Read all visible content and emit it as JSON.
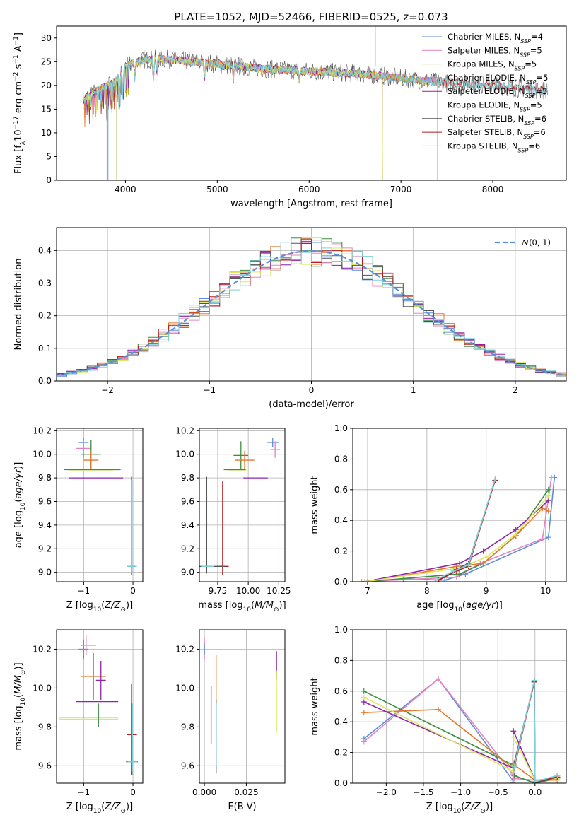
{
  "figure_title": "PLATE=1052, MJD=52466, FIBERID=0525, z=0.073",
  "colors": {
    "Chabrier MILES": "#5b8fd6",
    "Salpeter MILES": "#e583c4",
    "Kroupa MILES": "#b5a52a",
    "Chabrier ELODIE": "#e6782a",
    "Salpeter ELODIE": "#8e24aa",
    "Kroupa ELODIE": "#d9ea62",
    "Chabrier STELIB": "#555555",
    "Salpeter STELIB": "#b71c1c",
    "Kroupa STELIB": "#7ecfd8",
    "green": "#3e8e41",
    "normal_curve": "#5b8fd6"
  },
  "chart_data": [
    {
      "type": "line",
      "id": "spectrum",
      "xlabel": "wavelength [Angstrom, rest frame]",
      "ylabel": "Flux [f",
      "ylabel_parts": [
        "Flux [f",
        "λ",
        "10",
        "−17",
        " erg cm",
        "−2",
        " s",
        "−1",
        " A",
        "−1",
        "]"
      ],
      "xlim": [
        3250,
        8800
      ],
      "ylim": [
        0,
        32.5
      ],
      "xticks": [
        4000,
        5000,
        6000,
        7000,
        8000
      ],
      "yticks": [
        0,
        5,
        10,
        15,
        20,
        25,
        30
      ],
      "grid": false,
      "legend": "top-right",
      "legend_entries": [
        {
          "base": "Chabrier MILES, N",
          "sub": "SSP",
          "tail": "=4",
          "color": "#5b8fd6"
        },
        {
          "base": "Salpeter MILES, N",
          "sub": "SSP",
          "tail": "=5",
          "color": "#e583c4"
        },
        {
          "base": "Kroupa MILES, N",
          "sub": "SSP",
          "tail": "=5",
          "color": "#b5a52a"
        },
        {
          "base": "Chabrier ELODIE, N",
          "sub": "SSP",
          "tail": "=5",
          "color": "#e6782a"
        },
        {
          "base": "Salpeter ELODIE, N",
          "sub": "SSP",
          "tail": "=5",
          "color": "#8e24aa"
        },
        {
          "base": "Kroupa ELODIE, N",
          "sub": "SSP",
          "tail": "=5",
          "color": "#d9ea62"
        },
        {
          "base": "Chabrier STELIB, N",
          "sub": "SSP",
          "tail": "=6",
          "color": "#555555"
        },
        {
          "base": "Salpeter STELIB, N",
          "sub": "SSP",
          "tail": "=6",
          "color": "#b71c1c"
        },
        {
          "base": "Kroupa STELIB, N",
          "sub": "SSP",
          "tail": "=6",
          "color": "#7ecfd8"
        }
      ],
      "continuum": {
        "x": [
          3550,
          3700,
          3900,
          4000,
          4200,
          4500,
          5000,
          5500,
          6000,
          6500,
          6800,
          7000,
          7500,
          8000,
          8500
        ],
        "y": [
          17,
          19,
          21,
          24,
          25.5,
          25.5,
          24.5,
          23.5,
          23,
          22.5,
          22,
          21.5,
          20.5,
          20,
          19
        ]
      }
    },
    {
      "type": "histogram",
      "id": "residuals",
      "xlabel": "(data-model)/error",
      "ylabel": "Normed distribution",
      "xlim": [
        -2.5,
        2.5
      ],
      "ylim": [
        0,
        0.47
      ],
      "xticks": [
        -2,
        -1,
        0,
        1,
        2
      ],
      "yticks": [
        0.0,
        0.1,
        0.2,
        0.3,
        0.4
      ],
      "grid": true,
      "legend": "top-right",
      "legend_label": "N(0, 1)",
      "bin_width": 0.1,
      "series_hint": "9 step histograms approximating a standard normal"
    },
    {
      "type": "errorbar",
      "id": "age-vs-Z",
      "xlabel": "Z [log10(Z/Z⊙)]",
      "ylabel": "age [log10(age/yr)]",
      "xlim": [
        -1.55,
        0.2
      ],
      "ylim": [
        8.92,
        10.22
      ],
      "xticks": [
        -1,
        0
      ],
      "yticks": [
        9.0,
        9.2,
        9.4,
        9.6,
        9.8,
        10.0,
        10.2
      ],
      "grid": true,
      "points": [
        {
          "x": -1.0,
          "xerr": [
            0.1,
            0.1
          ],
          "y": 10.1,
          "yerr": [
            0.04,
            0.04
          ],
          "color": "#5b8fd6"
        },
        {
          "x": -1.0,
          "xerr": [
            0.15,
            0.15
          ],
          "y": 10.05,
          "yerr": [
            0.08,
            0.08
          ],
          "color": "#e583c4"
        },
        {
          "x": -0.85,
          "xerr": [
            0.2,
            0.2
          ],
          "y": 10.0,
          "yerr": [
            0.12,
            0.12
          ],
          "color": "#3e8e41"
        },
        {
          "x": -0.85,
          "xerr": [
            0.15,
            0.15
          ],
          "y": 9.95,
          "yerr": [
            0.08,
            0.08
          ],
          "color": "#e6782a"
        },
        {
          "x": -0.65,
          "xerr": [
            0.75,
            0.4
          ],
          "y": 9.87,
          "yerr": [
            0.0,
            0.0
          ],
          "color": "#3e8e41"
        },
        {
          "x": -0.75,
          "xerr": [
            0.55,
            0.35
          ],
          "y": 9.86,
          "yerr": [
            0.0,
            0.0
          ],
          "color": "#d9ea62"
        },
        {
          "x": -0.6,
          "xerr": [
            0.7,
            0.4
          ],
          "y": 9.8,
          "yerr": [
            0.0,
            0.0
          ],
          "color": "#8e24aa"
        },
        {
          "x": -0.03,
          "xerr": [
            0.1,
            0.1
          ],
          "y": 9.05,
          "yerr": [
            0.07,
            0.76
          ],
          "color": "#555555"
        },
        {
          "x": -0.02,
          "xerr": [
            0.1,
            0.1
          ],
          "y": 9.05,
          "yerr": [
            0.05,
            0.73
          ],
          "color": "#7ecfd8"
        }
      ]
    },
    {
      "type": "errorbar",
      "id": "age-vs-mass",
      "xlabel": "mass [log10(M/M⊙)]",
      "ylabel": "",
      "xlim": [
        9.6,
        10.3
      ],
      "ylim": [
        8.92,
        10.22
      ],
      "xticks": [
        9.75,
        10.0,
        10.25
      ],
      "yticks": [
        9.0,
        9.2,
        9.4,
        9.6,
        9.8,
        10.0,
        10.2
      ],
      "grid": true,
      "points": [
        {
          "x": 10.2,
          "xerr": [
            0.05,
            0.05
          ],
          "y": 10.1,
          "yerr": [
            0.04,
            0.04
          ],
          "color": "#5b8fd6"
        },
        {
          "x": 10.22,
          "xerr": [
            0.04,
            0.04
          ],
          "y": 10.04,
          "yerr": [
            0.07,
            0.07
          ],
          "color": "#e583c4"
        },
        {
          "x": 9.94,
          "xerr": [
            0.06,
            0.06
          ],
          "y": 9.99,
          "yerr": [
            0.12,
            0.12
          ],
          "color": "#3e8e41"
        },
        {
          "x": 9.97,
          "xerr": [
            0.08,
            0.08
          ],
          "y": 9.95,
          "yerr": [
            0.08,
            0.08
          ],
          "color": "#e6782a"
        },
        {
          "x": 9.92,
          "xerr": [
            0.12,
            0.06
          ],
          "y": 9.87,
          "yerr": [
            0.0,
            0.0
          ],
          "color": "#3e8e41"
        },
        {
          "x": 9.93,
          "xerr": [
            0.09,
            0.06
          ],
          "y": 9.86,
          "yerr": [
            0.0,
            0.0
          ],
          "color": "#d9ea62"
        },
        {
          "x": 10.05,
          "xerr": [
            0.09,
            0.11
          ],
          "y": 9.8,
          "yerr": [
            0.0,
            0.0
          ],
          "color": "#8e24aa"
        },
        {
          "x": 9.79,
          "xerr": [
            0.05,
            0.05
          ],
          "y": 9.05,
          "yerr": [
            0.07,
            0.72
          ],
          "color": "#b71c1c"
        },
        {
          "x": 9.66,
          "xerr": [
            0.06,
            0.16
          ],
          "y": 9.05,
          "yerr": [
            0.06,
            0.76
          ],
          "color": "#555555"
        },
        {
          "x": 9.67,
          "xerr": [
            0.05,
            0.05
          ],
          "y": 9.05,
          "yerr": [
            0.0,
            0.0
          ],
          "color": "#7ecfd8"
        }
      ]
    },
    {
      "type": "line",
      "id": "weight-vs-age",
      "xlabel": "age [log10(age/yr)]",
      "ylabel": "mass weight",
      "xlim": [
        6.75,
        10.35
      ],
      "ylim": [
        0.0,
        1.0
      ],
      "xticks": [
        7,
        8,
        9,
        10
      ],
      "yticks": [
        0.0,
        0.2,
        0.4,
        0.6,
        0.8,
        1.0
      ],
      "grid": true,
      "series": [
        {
          "color": "#5b8fd6",
          "x": [
            7.6,
            8.3,
            8.65,
            10.05,
            10.15
          ],
          "y": [
            0.02,
            0.01,
            0.05,
            0.29,
            0.68
          ]
        },
        {
          "color": "#e583c4",
          "x": [
            6.9,
            8.5,
            8.9,
            9.95,
            10.1
          ],
          "y": [
            0.0,
            0.03,
            0.12,
            0.28,
            0.68
          ]
        },
        {
          "color": "#3e8e41",
          "x": [
            6.95,
            8.55,
            8.95,
            9.5,
            10.05
          ],
          "y": [
            0.0,
            0.05,
            0.12,
            0.3,
            0.6
          ]
        },
        {
          "color": "#e6782a",
          "x": [
            7.0,
            8.5,
            8.95,
            9.5,
            9.95,
            10.05
          ],
          "y": [
            0.0,
            0.1,
            0.12,
            0.3,
            0.48,
            0.46
          ]
        },
        {
          "color": "#8e24aa",
          "x": [
            6.95,
            8.55,
            8.95,
            9.5,
            10.05
          ],
          "y": [
            0.0,
            0.12,
            0.2,
            0.34,
            0.53
          ]
        },
        {
          "color": "#d9ea62",
          "x": [
            6.95,
            8.55,
            9.0,
            9.5,
            10.05
          ],
          "y": [
            0.0,
            0.09,
            0.16,
            0.31,
            0.56
          ]
        },
        {
          "color": "#555555",
          "x": [
            8.2,
            8.5,
            8.7,
            9.15
          ],
          "y": [
            0.01,
            0.08,
            0.12,
            0.66
          ]
        },
        {
          "color": "#b71c1c",
          "x": [
            8.2,
            8.5,
            8.7,
            9.15
          ],
          "y": [
            0.01,
            0.07,
            0.1,
            0.66
          ]
        },
        {
          "color": "#7ecfd8",
          "x": [
            8.15,
            8.45,
            8.7,
            9.15
          ],
          "y": [
            0.01,
            0.07,
            0.11,
            0.67
          ]
        }
      ]
    },
    {
      "type": "errorbar",
      "id": "mass-vs-Z",
      "xlabel": "Z [log10(Z/Z⊙)]",
      "ylabel": "mass [log10(M/M⊙)]",
      "xlim": [
        -1.55,
        0.2
      ],
      "ylim": [
        9.51,
        10.3
      ],
      "xticks": [
        -1,
        0
      ],
      "yticks": [
        9.6,
        9.8,
        10.0,
        10.2
      ],
      "grid": true,
      "points": [
        {
          "x": -1.0,
          "xerr": [
            0.1,
            0.1
          ],
          "y": 10.2,
          "yerr": [
            0.05,
            0.05
          ],
          "color": "#5b8fd6"
        },
        {
          "x": -0.95,
          "xerr": [
            0.1,
            0.2
          ],
          "y": 10.22,
          "yerr": [
            0.05,
            0.05
          ],
          "color": "#e583c4"
        },
        {
          "x": -0.8,
          "xerr": [
            0.25,
            0.25
          ],
          "y": 10.06,
          "yerr": [
            0.12,
            0.12
          ],
          "color": "#e6782a"
        },
        {
          "x": -0.65,
          "xerr": [
            0.1,
            0.1
          ],
          "y": 10.04,
          "yerr": [
            0.1,
            0.1
          ],
          "color": "#8e24aa"
        },
        {
          "x": -0.65,
          "xerr": [
            0.5,
            0.35
          ],
          "y": 9.93,
          "yerr": [
            0.0,
            0.0
          ],
          "color": "#8e24aa"
        },
        {
          "x": -0.7,
          "xerr": [
            0.8,
            0.4
          ],
          "y": 9.85,
          "yerr": [
            0.0,
            0.0
          ],
          "color": "#3e8e41"
        },
        {
          "x": -0.7,
          "xerr": [
            0.8,
            0.4
          ],
          "y": 9.84,
          "yerr": [
            0.0,
            0.0
          ],
          "color": "#d9ea62"
        },
        {
          "x": -0.7,
          "xerr": [
            0.0,
            0.0
          ],
          "y": 9.86,
          "yerr": [
            0.06,
            0.06
          ],
          "color": "#3e8e41"
        },
        {
          "x": -0.02,
          "xerr": [
            0.1,
            0.1
          ],
          "y": 9.76,
          "yerr": [
            0.0,
            0.0
          ],
          "color": "#b71c1c"
        },
        {
          "x": -0.03,
          "xerr": [
            0.0,
            0.0
          ],
          "y": 9.78,
          "yerr": [
            0.06,
            0.24
          ],
          "color": "#b71c1c"
        },
        {
          "x": -0.02,
          "xerr": [
            0.12,
            0.12
          ],
          "y": 9.62,
          "yerr": [
            0.07,
            0.3
          ],
          "color": "#555555"
        },
        {
          "x": -0.01,
          "xerr": [
            0.1,
            0.1
          ],
          "y": 9.62,
          "yerr": [
            0.05,
            0.3
          ],
          "color": "#7ecfd8"
        }
      ]
    },
    {
      "type": "errorbar",
      "id": "mass-vs-EBV",
      "xlabel": "E(B-V)",
      "ylabel": "",
      "xlim": [
        -0.003,
        0.048
      ],
      "ylim": [
        9.51,
        10.3
      ],
      "xticks": [
        0.0,
        0.025
      ],
      "xticklabels": [
        "0.000",
        "0.025"
      ],
      "yticks": [
        9.6,
        9.8,
        10.0,
        10.2
      ],
      "grid": true,
      "points": [
        {
          "x": 0.0,
          "y": 10.2,
          "yerr": [
            0.05,
            0.06
          ],
          "color": "#e583c4"
        },
        {
          "x": 0.0,
          "y": 10.2,
          "yerr": [
            0.03,
            0.03
          ],
          "color": "#5b8fd6"
        },
        {
          "x": 0.007,
          "y": 10.05,
          "yerr": [
            0.12,
            0.12
          ],
          "color": "#e6782a"
        },
        {
          "x": 0.004,
          "y": 9.86,
          "yerr": [
            0.15,
            0.15
          ],
          "color": "#b71c1c"
        },
        {
          "x": 0.007,
          "y": 9.75,
          "yerr": [
            0.19,
            0.19
          ],
          "color": "#555555"
        },
        {
          "x": 0.007,
          "y": 9.76,
          "yerr": [
            0.16,
            0.16
          ],
          "color": "#7ecfd8"
        },
        {
          "x": 0.043,
          "y": 10.12,
          "yerr": [
            0.07,
            0.07
          ],
          "color": "#8e24aa"
        },
        {
          "x": 0.043,
          "y": 9.93,
          "yerr": [
            0.16,
            0.16
          ],
          "color": "#d9ea62"
        }
      ]
    },
    {
      "type": "line",
      "id": "weight-vs-Z",
      "xlabel": "Z [log10(Z/Z⊙)]",
      "ylabel": "mass weight",
      "xlim": [
        -2.45,
        0.42
      ],
      "ylim": [
        0.0,
        1.0
      ],
      "xticks": [
        -2.0,
        -1.5,
        -1.0,
        -0.5,
        0.0
      ],
      "xticklabels": [
        "−2.0",
        "−1.5",
        "−1.0",
        "−0.5",
        "0.0"
      ],
      "yticks": [
        0.0,
        0.2,
        0.4,
        0.6,
        0.8,
        1.0
      ],
      "grid": true,
      "series": [
        {
          "color": "#5b8fd6",
          "x": [
            -2.3,
            -1.3,
            -0.3,
            -0.28,
            0.0,
            0.3
          ],
          "y": [
            0.29,
            0.68,
            0.02,
            0.05,
            0.0,
            0.05
          ]
        },
        {
          "color": "#e583c4",
          "x": [
            -2.3,
            -1.3,
            -0.3,
            -0.28,
            0.0,
            0.3
          ],
          "y": [
            0.27,
            0.68,
            0.06,
            0.03,
            0.02,
            0.03
          ]
        },
        {
          "color": "#3e8e41",
          "x": [
            -2.3,
            -0.3,
            -0.28,
            0.0,
            0.3
          ],
          "y": [
            0.6,
            0.12,
            0.05,
            0.0,
            0.03
          ]
        },
        {
          "color": "#e6782a",
          "x": [
            -2.3,
            -1.3,
            -0.3,
            -0.28,
            0.0,
            0.3
          ],
          "y": [
            0.46,
            0.48,
            0.1,
            0.12,
            0.02,
            0.02
          ]
        },
        {
          "color": "#8e24aa",
          "x": [
            -2.3,
            -0.3,
            -0.29,
            0.0,
            0.3
          ],
          "y": [
            0.53,
            0.1,
            0.34,
            0.02,
            0.03
          ]
        },
        {
          "color": "#d9ea62",
          "x": [
            -2.3,
            -0.3,
            -0.29,
            0.0,
            0.3
          ],
          "y": [
            0.56,
            0.08,
            0.3,
            0.02,
            0.03
          ]
        },
        {
          "color": "#555555",
          "x": [
            -0.3,
            -0.28,
            -0.01,
            0.0,
            0.3
          ],
          "y": [
            0.0,
            0.13,
            0.66,
            0.0,
            0.04
          ]
        },
        {
          "color": "#b71c1c",
          "x": [
            -0.3,
            -0.28,
            -0.01,
            0.0,
            0.3
          ],
          "y": [
            0.0,
            0.1,
            0.66,
            0.01,
            0.04
          ]
        },
        {
          "color": "#7ecfd8",
          "x": [
            -0.3,
            -0.28,
            -0.01,
            0.0,
            0.3
          ],
          "y": [
            0.0,
            0.11,
            0.67,
            0.01,
            0.05
          ]
        }
      ]
    }
  ]
}
